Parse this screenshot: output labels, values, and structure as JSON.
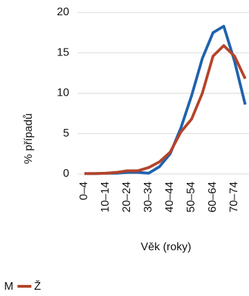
{
  "chart_data": {
    "type": "line",
    "x_label": "Věk (roky)",
    "y_label": "% případů",
    "categories": [
      "0–4",
      null,
      "10–14",
      null,
      "20–24",
      null,
      "30–34",
      null,
      "40–44",
      null,
      "50–54",
      null,
      "60–64",
      null,
      "70–74",
      null
    ],
    "series": [
      {
        "name": "M",
        "color": "#1f63ad",
        "values": [
          0.05,
          0.05,
          0.1,
          0.1,
          0.2,
          0.2,
          0.1,
          0.9,
          2.5,
          5.7,
          9.7,
          14.3,
          17.5,
          18.3,
          14,
          8.6
        ]
      },
      {
        "name": "Ž",
        "color": "#b5442a",
        "values": [
          0.05,
          0.05,
          0.1,
          0.2,
          0.4,
          0.4,
          0.8,
          1.5,
          2.7,
          5.2,
          6.8,
          10,
          14.6,
          15.9,
          14.6,
          11.8
        ]
      }
    ],
    "ylim": [
      0,
      20
    ],
    "yticks": [
      0,
      5,
      10,
      15,
      20
    ],
    "grid": true
  }
}
